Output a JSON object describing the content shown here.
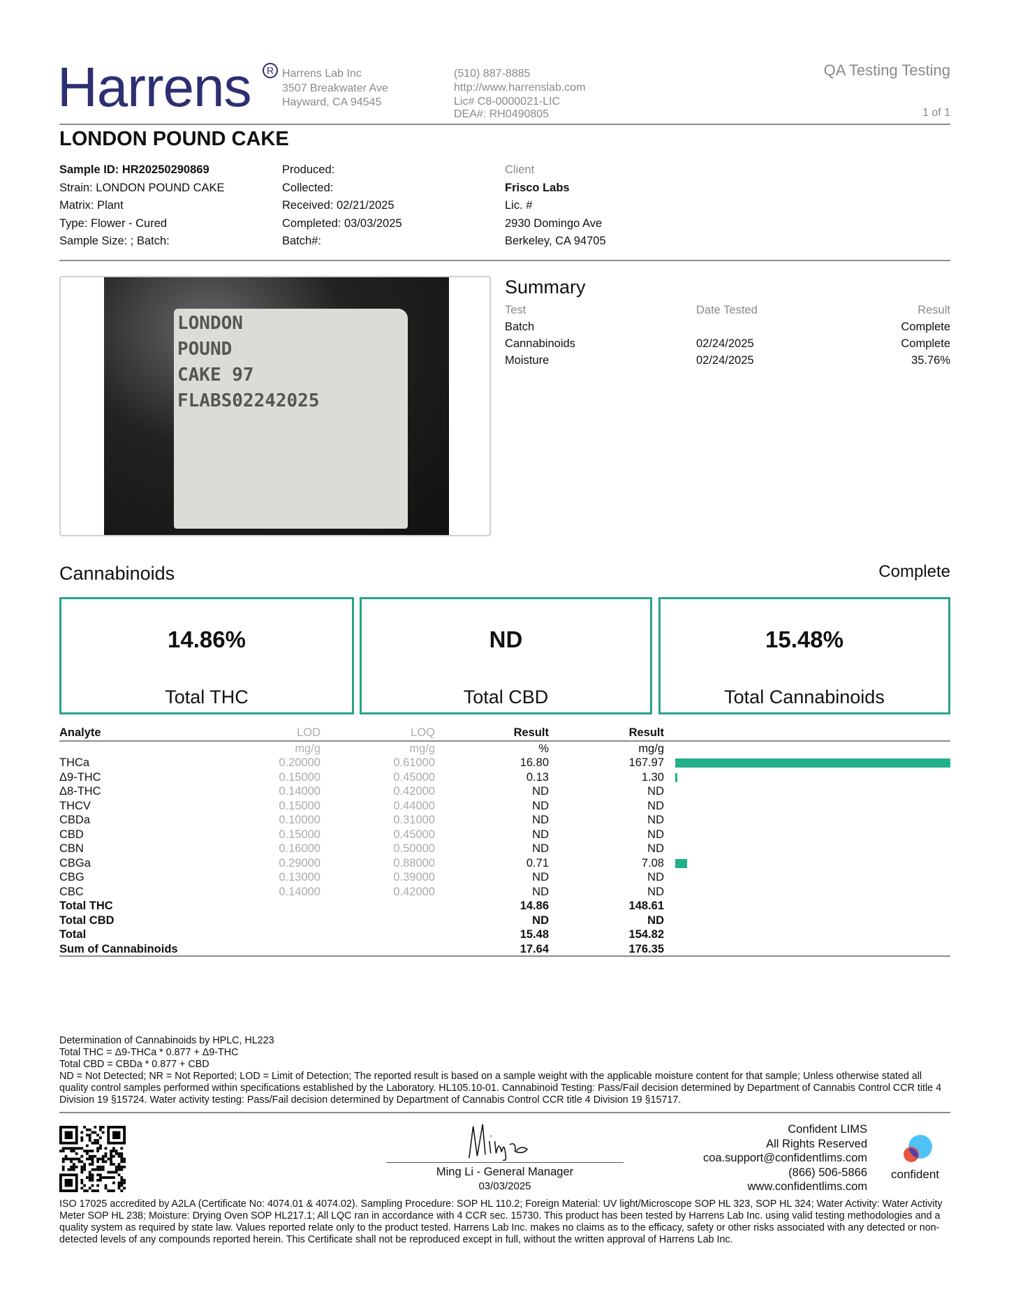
{
  "header": {
    "logo": "Harrens",
    "company": "Harrens Lab Inc",
    "address1": "3507 Breakwater Ave",
    "address2": "Hayward, CA 94545",
    "phone": "(510) 887-8885",
    "website": "http://www.harrenslab.com",
    "license": "Lic# C8-0000021-LIC",
    "dea": "DEA#: RH0490805",
    "report_type": "QA Testing Testing",
    "page": "1 of 1"
  },
  "title": "LONDON POUND CAKE",
  "sample": {
    "id": "Sample ID: HR20250290869",
    "strain": "Strain: LONDON POUND CAKE",
    "matrix": "Matrix: Plant",
    "type": "Type: Flower - Cured",
    "size": "Sample Size: ; Batch:"
  },
  "dates": {
    "produced": "Produced:",
    "collected": "Collected:",
    "received": "Received: 02/21/2025",
    "completed": "Completed: 03/03/2025",
    "batch": "Batch#:"
  },
  "client": {
    "label": "Client",
    "name": "Frisco Labs",
    "lic": "Lic. #",
    "address1": "2930 Domingo Ave",
    "address2": "Berkeley, CA 94705"
  },
  "photo_label": [
    "LONDON",
    "POUND",
    "CAKE 97",
    "FLABS02242025"
  ],
  "summary": {
    "title": "Summary",
    "headers": {
      "test": "Test",
      "date": "Date Tested",
      "result": "Result"
    },
    "rows": [
      {
        "test": "Batch",
        "date": "",
        "result": "Complete"
      },
      {
        "test": "Cannabinoids",
        "date": "02/24/2025",
        "result": "Complete"
      },
      {
        "test": "Moisture",
        "date": "02/24/2025",
        "result": "35.76%"
      }
    ]
  },
  "cannabinoids": {
    "title": "Cannabinoids",
    "status": "Complete",
    "cards": [
      {
        "value": "14.86%",
        "label": "Total THC"
      },
      {
        "value": "ND",
        "label": "Total CBD"
      },
      {
        "value": "15.48%",
        "label": "Total Cannabinoids"
      }
    ],
    "headers": {
      "analyte": "Analyte",
      "lod": "LOD",
      "loq": "LOQ",
      "result_pct": "Result",
      "result_mg": "Result"
    },
    "units": {
      "lod": "mg/g",
      "loq": "mg/g",
      "pct": "%",
      "mg": "mg/g"
    },
    "rows": [
      {
        "analyte": "THCa",
        "lod": "0.20000",
        "loq": "0.61000",
        "pct": "16.80",
        "mg": "167.97",
        "bar": 167.97
      },
      {
        "analyte": "Δ9-THC",
        "lod": "0.15000",
        "loq": "0.45000",
        "pct": "0.13",
        "mg": "1.30",
        "bar": 1.3
      },
      {
        "analyte": "Δ8-THC",
        "lod": "0.14000",
        "loq": "0.42000",
        "pct": "ND",
        "mg": "ND",
        "bar": 0
      },
      {
        "analyte": "THCV",
        "lod": "0.15000",
        "loq": "0.44000",
        "pct": "ND",
        "mg": "ND",
        "bar": 0
      },
      {
        "analyte": "CBDa",
        "lod": "0.10000",
        "loq": "0.31000",
        "pct": "ND",
        "mg": "ND",
        "bar": 0
      },
      {
        "analyte": "CBD",
        "lod": "0.15000",
        "loq": "0.45000",
        "pct": "ND",
        "mg": "ND",
        "bar": 0
      },
      {
        "analyte": "CBN",
        "lod": "0.16000",
        "loq": "0.50000",
        "pct": "ND",
        "mg": "ND",
        "bar": 0
      },
      {
        "analyte": "CBGa",
        "lod": "0.29000",
        "loq": "0.88000",
        "pct": "0.71",
        "mg": "7.08",
        "bar": 7.08
      },
      {
        "analyte": "CBG",
        "lod": "0.13000",
        "loq": "0.39000",
        "pct": "ND",
        "mg": "ND",
        "bar": 0
      },
      {
        "analyte": "CBC",
        "lod": "0.14000",
        "loq": "0.42000",
        "pct": "ND",
        "mg": "ND",
        "bar": 0
      }
    ],
    "totals": [
      {
        "analyte": "Total THC",
        "pct": "14.86",
        "mg": "148.61"
      },
      {
        "analyte": "Total CBD",
        "pct": "ND",
        "mg": "ND"
      },
      {
        "analyte": "Total",
        "pct": "15.48",
        "mg": "154.82"
      },
      {
        "analyte": "Sum of Cannabinoids",
        "pct": "17.64",
        "mg": "176.35"
      }
    ],
    "bar_color": "#22b08b"
  },
  "notes": [
    "Determination of Cannabinoids by HPLC, HL223",
    "Total THC = Δ9-THCa * 0.877 + Δ9-THC",
    "Total CBD = CBDa * 0.877 + CBD",
    "ND = Not Detected; NR = Not Reported; LOD = Limit of Detection; The reported result is based on a sample weight with the applicable moisture content for that sample; Unless otherwise stated all quality control samples performed within specifications established by the Laboratory. HL105.10-01. Cannabinoid Testing: Pass/Fail decision determined by Department of Cannabis Control CCR title 4 Division 19 §15724. Water activity testing: Pass/Fail decision determined by Department of Cannabis Control CCR title 4 Division 19 §15717."
  ],
  "signature": {
    "name": "Ming Li - General Manager",
    "date": "03/03/2025"
  },
  "lims": {
    "line1": "Confident LIMS",
    "line2": "All Rights Reserved",
    "email": "coa.support@confidentlims.com",
    "phone": "(866) 506-5866",
    "website": "www.confidentlims.com",
    "logo_text": "confident"
  },
  "disclaimer": "ISO 17025 accredited by A2LA (Certificate No: 4074.01 & 4074.02). Sampling Procedure: SOP HL 110.2; Foreign Material: UV light/Microscope SOP HL 323, SOP HL 324; Water Activity: Water Activity Meter SOP HL 238; Moisture: Drying Oven SOP HL217.1; All LQC ran in accordance with 4 CCR sec. 15730. This product has been tested by Harrens Lab Inc. using valid testing methodologies and a quality system as required by state law. Values reported relate only to the product tested. Harrens Lab Inc. makes no claims as to the efficacy, safety or other risks associated with any detected or non-detected levels of any compounds reported herein. This Certificate shall not be reproduced except in full, without the written approval of Harrens Lab Inc.",
  "colors": {
    "brand": "#2d2f72",
    "accent": "#22b08b"
  }
}
